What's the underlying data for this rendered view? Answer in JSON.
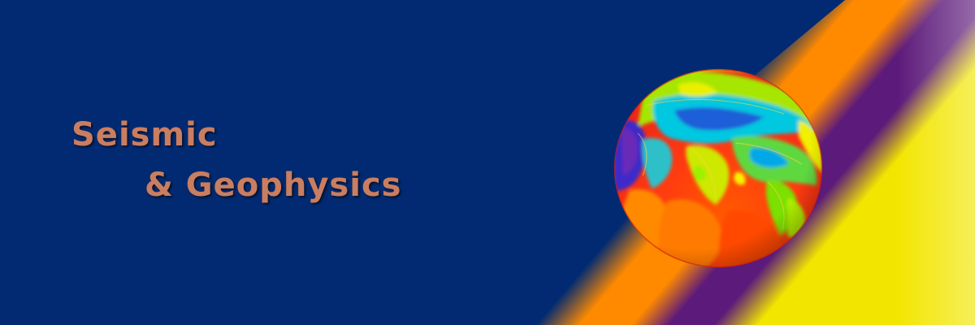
{
  "banner": {
    "title_line_1": "Seismic",
    "title_line_2": "& Geophysics",
    "title_color": "#C97E62",
    "background_color": "#012A72",
    "stripe_colors": [
      "#FF8A00",
      "#5C1A7A",
      "#F2E600"
    ]
  },
  "globe": {
    "icon": "heatmap-earth-globe"
  }
}
